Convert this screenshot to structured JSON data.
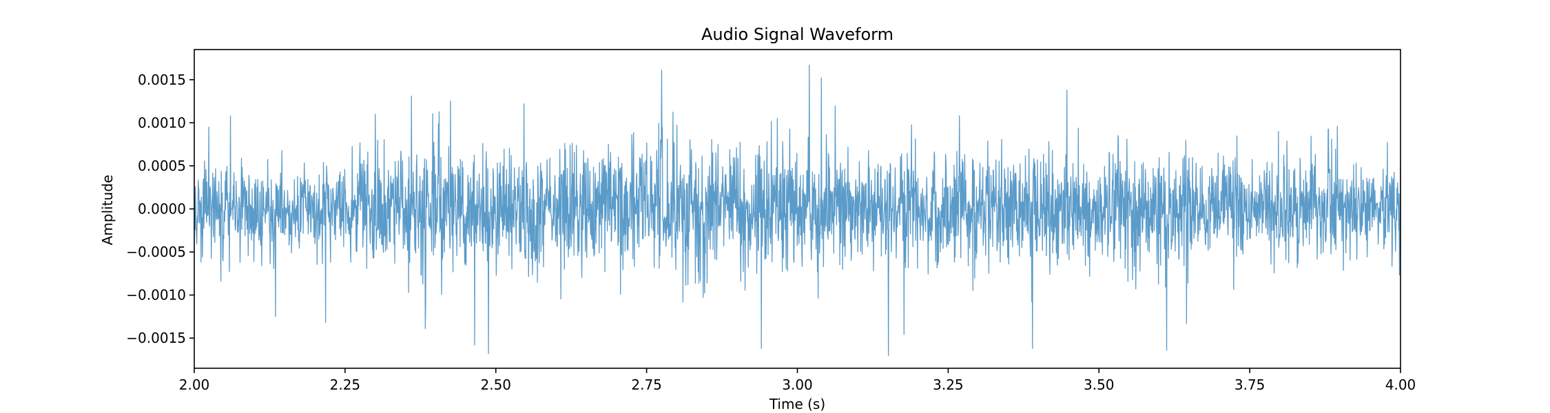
{
  "chart_data": {
    "type": "line",
    "title": "Audio Signal Waveform",
    "xlabel": "Time (s)",
    "ylabel": "Amplitude",
    "xlim": [
      2.0,
      4.0
    ],
    "ylim": [
      -0.00185,
      0.00185
    ],
    "x_ticks": [
      2.0,
      2.25,
      2.5,
      2.75,
      3.0,
      3.25,
      3.5,
      3.75,
      4.0
    ],
    "x_tick_labels": [
      "2.00",
      "2.25",
      "2.50",
      "2.75",
      "3.00",
      "3.25",
      "3.50",
      "3.75",
      "4.00"
    ],
    "y_ticks": [
      -0.0015,
      -0.001,
      -0.0005,
      0.0,
      0.0005,
      0.001,
      0.0015
    ],
    "y_tick_labels": [
      "−0.0015",
      "−0.0010",
      "−0.0005",
      "0.0000",
      "0.0005",
      "0.0010",
      "0.0015"
    ],
    "grid": false,
    "legend": "none",
    "series": [
      {
        "color": "#5b9bc9",
        "x_start": 2.0,
        "x_end": 4.0,
        "envelope": [
          {
            "x": 2.0,
            "y": 0.00055
          },
          {
            "x": 2.1,
            "y": 0.0006
          },
          {
            "x": 2.2,
            "y": 0.00055
          },
          {
            "x": 2.3,
            "y": 0.0008
          },
          {
            "x": 2.4,
            "y": 0.0009
          },
          {
            "x": 2.5,
            "y": 0.0007
          },
          {
            "x": 2.6,
            "y": 0.0008
          },
          {
            "x": 2.7,
            "y": 0.00085
          },
          {
            "x": 2.8,
            "y": 0.0009
          },
          {
            "x": 2.9,
            "y": 0.0009
          },
          {
            "x": 3.0,
            "y": 0.00095
          },
          {
            "x": 3.1,
            "y": 0.0008
          },
          {
            "x": 3.2,
            "y": 0.00085
          },
          {
            "x": 3.3,
            "y": 0.0008
          },
          {
            "x": 3.4,
            "y": 0.0008
          },
          {
            "x": 3.5,
            "y": 0.00075
          },
          {
            "x": 3.6,
            "y": 0.0007
          },
          {
            "x": 3.7,
            "y": 0.00065
          },
          {
            "x": 3.8,
            "y": 0.0007
          },
          {
            "x": 3.9,
            "y": 0.0007
          },
          {
            "x": 4.0,
            "y": 0.00055
          }
        ],
        "peaks": [
          {
            "x": 2.024,
            "y": 0.00095
          },
          {
            "x": 2.06,
            "y": 0.00108
          },
          {
            "x": 2.135,
            "y": -0.00125
          },
          {
            "x": 2.218,
            "y": -0.00132
          },
          {
            "x": 2.3,
            "y": 0.0011
          },
          {
            "x": 2.36,
            "y": 0.00131
          },
          {
            "x": 2.425,
            "y": 0.00125
          },
          {
            "x": 2.465,
            "y": -0.00158
          },
          {
            "x": 2.488,
            "y": -0.00168
          },
          {
            "x": 2.775,
            "y": 0.00161
          },
          {
            "x": 2.94,
            "y": -0.00162
          },
          {
            "x": 3.02,
            "y": 0.00167
          },
          {
            "x": 3.04,
            "y": 0.00152
          },
          {
            "x": 3.39,
            "y": -0.00162
          },
          {
            "x": 3.447,
            "y": 0.00138
          },
          {
            "x": 3.612,
            "y": -0.00164
          },
          {
            "x": 3.645,
            "y": -0.00133
          },
          {
            "x": 3.895,
            "y": 0.00096
          }
        ]
      }
    ]
  }
}
